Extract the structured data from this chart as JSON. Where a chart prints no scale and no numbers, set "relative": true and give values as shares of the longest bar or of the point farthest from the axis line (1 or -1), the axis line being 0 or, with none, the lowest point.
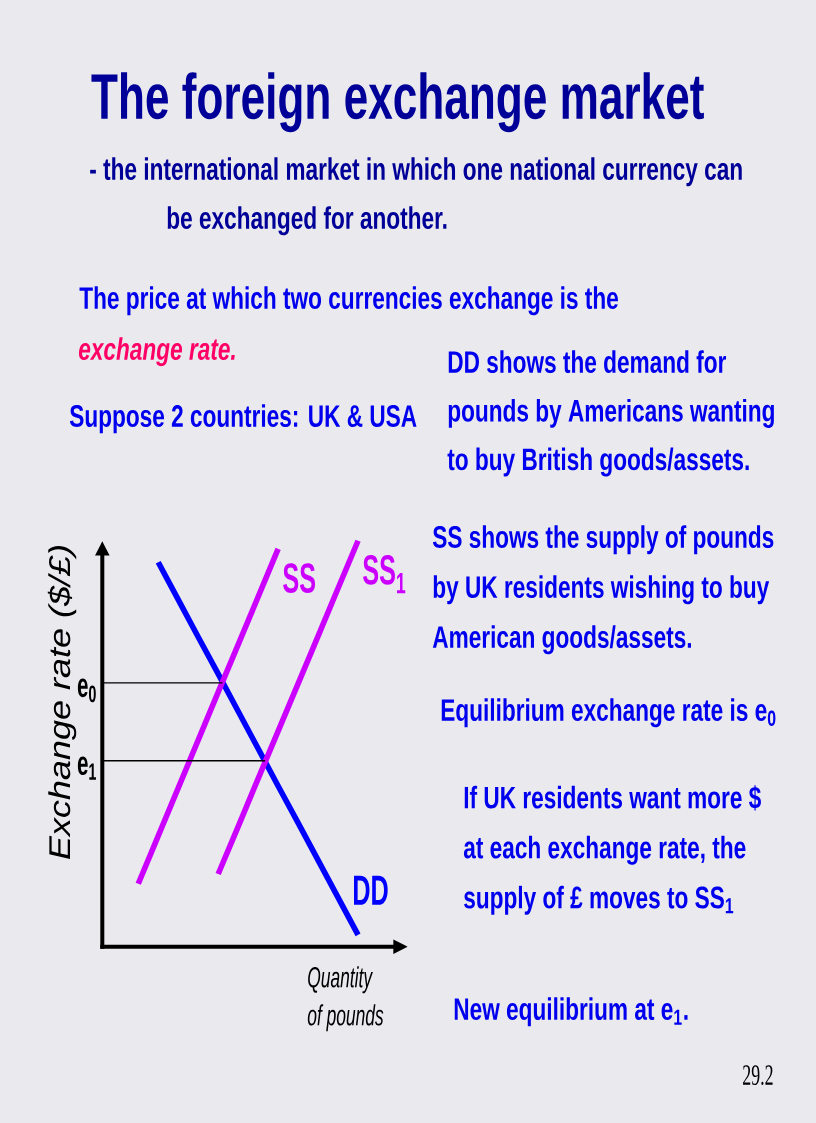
{
  "chart_data": {
    "type": "line",
    "title": "The foreign exchange market",
    "subtitle": "- the international market in which one national currency can be exchanged for another.",
    "xlabel": "Quantity of pounds",
    "ylabel": "Exchange rate ($/£)",
    "relative": true,
    "line_style": "solid",
    "categories": [
      null,
      null,
      null,
      null,
      null,
      null,
      null,
      null,
      null,
      null,
      null,
      null
    ],
    "series": [
      {
        "name": "DD",
        "color": "#0000ff",
        "values": [
          null,
          0.947,
          0.855,
          0.763,
          0.672,
          0.58,
          0.488,
          0.396,
          0.305,
          0.213,
          0.121,
          0.029
        ]
      },
      {
        "name": "SS",
        "color": "#cc00ff",
        "values": [
          0.155,
          0.273,
          0.391,
          0.509,
          0.627,
          0.744,
          0.862,
          0.98,
          null,
          null,
          null,
          null
        ]
      },
      {
        "name": "SS$_{1}$",
        "color": "#cc00ff",
        "values": [
          null,
          null,
          null,
          null,
          0.179,
          0.296,
          0.414,
          0.531,
          0.648,
          0.765,
          0.883,
          1.0
        ]
      }
    ],
    "ref_lines": [
      {
        "axis": "y",
        "value": 0.65,
        "label": "e$_{0}$"
      },
      {
        "axis": "y",
        "value": 0.458,
        "label": "e$_{1}$"
      }
    ],
    "annotations": [
      "The price at which two currencies exchange is the",
      "exchange rate.",
      "Suppose 2 countries: UK & USA",
      "DD shows the demand for pounds by Americans wanting to buy British goods/assets.",
      "SS shows the supply of pounds by UK residents wishing to buy American goods/assets.",
      "Equilibrium exchange rate is e$_{0}$",
      "If UK residents want more $ at each exchange rate, the supply of £ moves to SS$_{1}$",
      "New equilibrium at e$_{1}$.",
      "29.2"
    ]
  }
}
